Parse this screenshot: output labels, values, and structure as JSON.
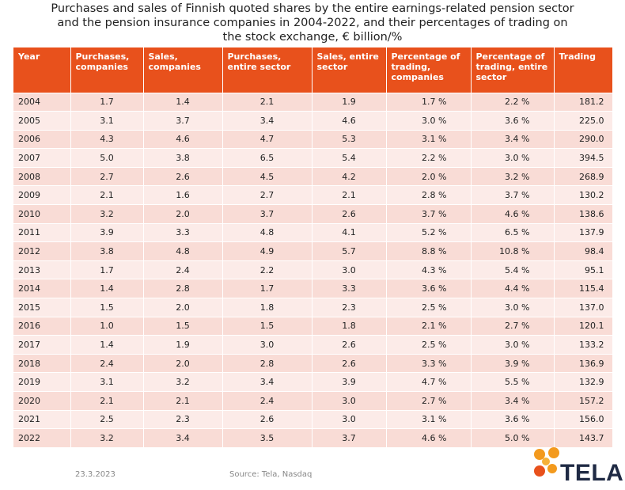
{
  "title": {
    "line1": "Purchases and sales of Finnish quoted shares by the entire earnings-related pension sector",
    "line2": "and the pension insurance companies in 2004-2022, and their percentages of trading on",
    "line3": "the stock exchange, € billion/%"
  },
  "table": {
    "headers": [
      "Year",
      "Purchases, companies",
      "Sales, companies",
      "Purchases, entire sector",
      "Sales, entire sector",
      "Percentage of trading, companies",
      "Percentage of trading, entire sector",
      "Trading"
    ],
    "rows": [
      [
        "2004",
        "1.7",
        "1.4",
        "2.1",
        "1.9",
        "1.7 %",
        "2.2 %",
        "181.2"
      ],
      [
        "2005",
        "3.1",
        "3.7",
        "3.4",
        "4.6",
        "3.0 %",
        "3.6 %",
        "225.0"
      ],
      [
        "2006",
        "4.3",
        "4.6",
        "4.7",
        "5.3",
        "3.1 %",
        "3.4 %",
        "290.0"
      ],
      [
        "2007",
        "5.0",
        "3.8",
        "6.5",
        "5.4",
        "2.2 %",
        "3.0 %",
        "394.5"
      ],
      [
        "2008",
        "2.7",
        "2.6",
        "4.5",
        "4.2",
        "2.0 %",
        "3.2 %",
        "268.9"
      ],
      [
        "2009",
        "2.1",
        "1.6",
        "2.7",
        "2.1",
        "2.8 %",
        "3.7 %",
        "130.2"
      ],
      [
        "2010",
        "3.2",
        "2.0",
        "3.7",
        "2.6",
        "3.7 %",
        "4.6 %",
        "138.6"
      ],
      [
        "2011",
        "3.9",
        "3.3",
        "4.8",
        "4.1",
        "5.2 %",
        "6.5 %",
        "137.9"
      ],
      [
        "2012",
        "3.8",
        "4.8",
        "4.9",
        "5.7",
        "8.8 %",
        "10.8 %",
        "98.4"
      ],
      [
        "2013",
        "1.7",
        "2.4",
        "2.2",
        "3.0",
        "4.3 %",
        "5.4 %",
        "95.1"
      ],
      [
        "2014",
        "1.4",
        "2.8",
        "1.7",
        "3.3",
        "3.6 %",
        "4.4 %",
        "115.4"
      ],
      [
        "2015",
        "1.5",
        "2.0",
        "1.8",
        "2.3",
        "2.5 %",
        "3.0 %",
        "137.0"
      ],
      [
        "2016",
        "1.0",
        "1.5",
        "1.5",
        "1.8",
        "2.1 %",
        "2.7 %",
        "120.1"
      ],
      [
        "2017",
        "1.4",
        "1.9",
        "3.0",
        "2.6",
        "2.5 %",
        "3.0 %",
        "133.2"
      ],
      [
        "2018",
        "2.4",
        "2.0",
        "2.8",
        "2.6",
        "3.3 %",
        "3.9 %",
        "136.9"
      ],
      [
        "2019",
        "3.1",
        "3.2",
        "3.4",
        "3.9",
        "4.7 %",
        "5.5 %",
        "132.9"
      ],
      [
        "2020",
        "2.1",
        "2.1",
        "2.4",
        "3.0",
        "2.7 %",
        "3.4 %",
        "157.2"
      ],
      [
        "2021",
        "2.5",
        "2.3",
        "2.6",
        "3.0",
        "3.1 %",
        "3.6 %",
        "156.0"
      ],
      [
        "2022",
        "3.2",
        "3.4",
        "3.5",
        "3.7",
        "4.6 %",
        "5.0 %",
        "143.7"
      ]
    ]
  },
  "footer": {
    "date": "23.3.2023",
    "source": "Source: Tela, Nasdaq"
  },
  "logo": {
    "text": "TELA",
    "icon": "tela-flower-logo-icon",
    "colors": {
      "petal_orange": "#f39a1e",
      "petal_red": "#e8511c",
      "text": "#1f2a44"
    }
  },
  "colors": {
    "header_bg": "#e8511c",
    "row_odd": "#f9dcd6",
    "row_even": "#fcebe8"
  }
}
